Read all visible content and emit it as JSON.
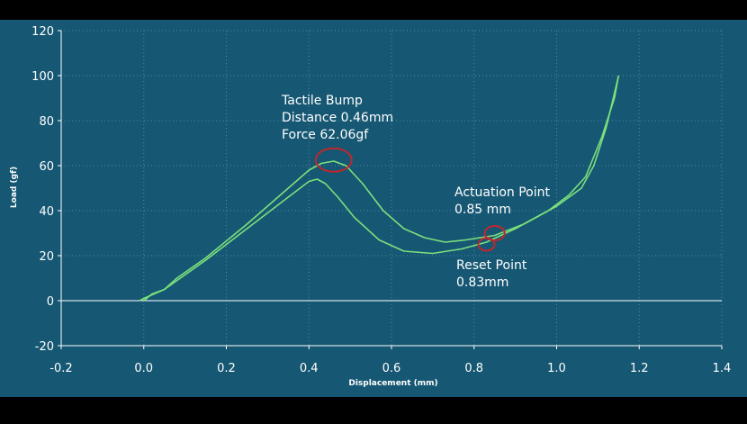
{
  "chart_data": {
    "type": "line",
    "title": "",
    "xlabel": "Displacement (mm)",
    "ylabel": "Load (gf)",
    "xlim": [
      -0.2,
      1.4
    ],
    "ylim": [
      -20,
      120
    ],
    "x_ticks": [
      "-0.2",
      "0.0",
      "0.2",
      "0.4",
      "0.6",
      "0.8",
      "1.0",
      "1.2",
      "1.4"
    ],
    "y_ticks": [
      "-20",
      "0",
      "20",
      "40",
      "60",
      "80",
      "100",
      "120"
    ],
    "grid": true,
    "background_color": "#165773",
    "frame_color": "#000000",
    "line_color": "#7ce07c",
    "marker_color": "#c0272d",
    "series": [
      {
        "points": [
          [
            0.0,
            0
          ],
          [
            0.02,
            3
          ],
          [
            0.05,
            5
          ],
          [
            0.08,
            10
          ],
          [
            0.15,
            19
          ],
          [
            0.25,
            34
          ],
          [
            0.35,
            50
          ],
          [
            0.4,
            58
          ],
          [
            0.43,
            61
          ],
          [
            0.46,
            62
          ],
          [
            0.49,
            60
          ],
          [
            0.53,
            52
          ],
          [
            0.58,
            40
          ],
          [
            0.63,
            32
          ],
          [
            0.68,
            28
          ],
          [
            0.73,
            26
          ],
          [
            0.78,
            27
          ],
          [
            0.85,
            29
          ],
          [
            0.92,
            34
          ],
          [
            1.0,
            42
          ],
          [
            1.06,
            50
          ],
          [
            1.09,
            60
          ],
          [
            1.12,
            77
          ],
          [
            1.145,
            96
          ],
          [
            1.15,
            100
          ]
        ]
      },
      {
        "points": [
          [
            1.15,
            100
          ],
          [
            1.14,
            90
          ],
          [
            1.11,
            73
          ],
          [
            1.07,
            55
          ],
          [
            1.03,
            47
          ],
          [
            0.98,
            40
          ],
          [
            0.9,
            32
          ],
          [
            0.83,
            26
          ],
          [
            0.77,
            23
          ],
          [
            0.7,
            21
          ],
          [
            0.63,
            22
          ],
          [
            0.57,
            27
          ],
          [
            0.51,
            37
          ],
          [
            0.47,
            46
          ],
          [
            0.44,
            52
          ],
          [
            0.42,
            54
          ],
          [
            0.4,
            53
          ],
          [
            0.35,
            46
          ],
          [
            0.25,
            32
          ],
          [
            0.15,
            18
          ],
          [
            0.05,
            5
          ],
          [
            0.0,
            1
          ],
          [
            -0.01,
            0
          ]
        ]
      }
    ],
    "annotations": [
      {
        "lines": [
          "Tactile Bump",
          "Distance 0.46mm",
          "Force 62.06gf"
        ],
        "marker": [
          0.46,
          62.5
        ]
      },
      {
        "lines": [
          "Actuation Point",
          "0.85 mm"
        ],
        "marker": [
          0.85,
          30
        ]
      },
      {
        "lines": [
          "Reset Point",
          "0.83mm"
        ],
        "marker": [
          0.83,
          25
        ]
      }
    ]
  }
}
